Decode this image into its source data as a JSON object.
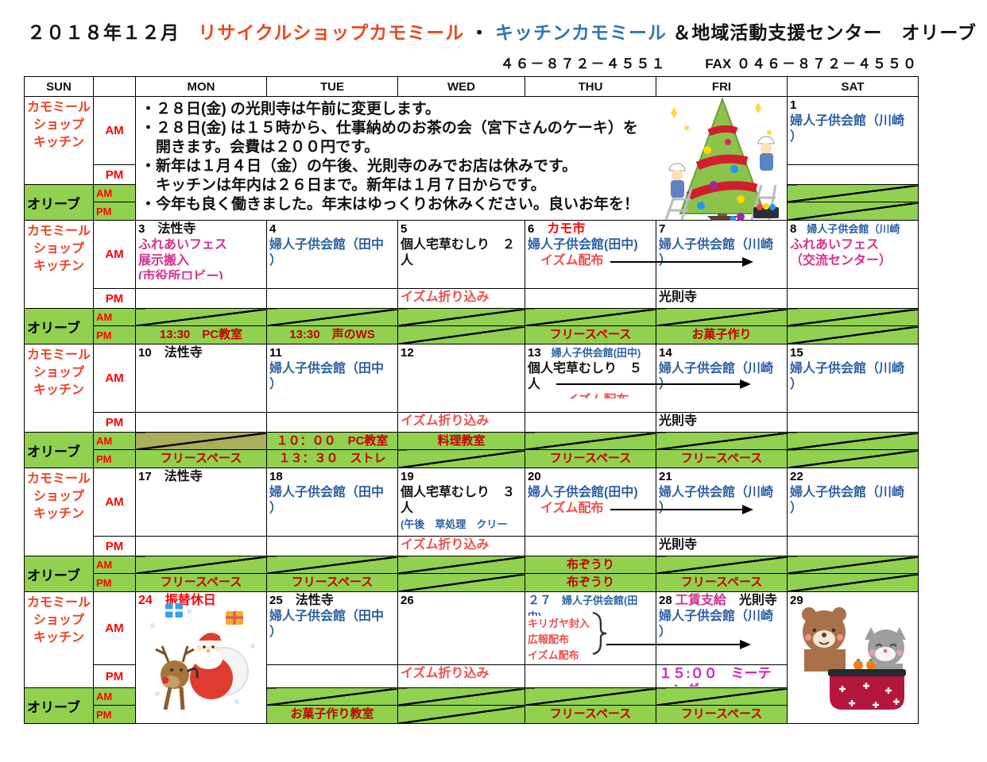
{
  "title": {
    "date": "２０１８年１２月",
    "shop": "リサイクルショップカモミール",
    "sep": "・",
    "kitchen": "キッチンカモミール",
    "suffix": "＆地域活動支援センター　オリーブ"
  },
  "contact": {
    "tel": "４６－８７２－４５５１",
    "fax_label": "FAX",
    "fax": "０４６－８７２－４５５０"
  },
  "header": {
    "sun": "SUN",
    "spacer": "",
    "mon": "MON",
    "tue": "TUE",
    "wed": "WED",
    "thu": "THU",
    "fri": "FRI",
    "sat": "SAT"
  },
  "labels": {
    "chamomile": "カモミール ショップ キッチン",
    "olive": "オリーブ",
    "am": "AM",
    "pm": "PM"
  },
  "notice": {
    "lines": [
      "・２８日(金) の光則寺は午前に変更します。",
      "・２８日(金) は１５時から、仕事納めのお茶の会（宮下さんのケーキ）を",
      "　開きます。会費は２００円です。",
      "・新年は１月４日（金）の午後、光則寺のみでお店は休みです。",
      "　キッチンは年内は２６日まで。新年は１月７日からです。",
      "・今年も良く働きました。年末はゆっくりお休みください。良いお年を！"
    ]
  },
  "colors": {
    "green": "#92d050",
    "label_red": "#ee4023",
    "event_blue": "#2b5fa5",
    "event_magenta": "#d6308f",
    "event_salmon": "#ef4d4d",
    "green_cell_text": "#c00000",
    "title_orange": "#e8491d",
    "title_blue": "#2e74b5"
  },
  "weeks": [
    {
      "type": "notice",
      "sat": {
        "am": [
          [
            "1|d"
          ],
          [
            "婦人子供会館（川崎|b"
          ],
          [
            "）|b"
          ]
        ],
        "pm": [],
        "olive_am": "closed",
        "olive_pm": "closed"
      }
    },
    {
      "am": {
        "mon": [
          [
            "3|d",
            "　法性寺|k"
          ],
          [
            "ふれあいフェス|m"
          ],
          [
            "展示搬入|m"
          ],
          {
            "clip": 13,
            "segs": [
              "(市役所ロビー)|m"
            ]
          }
        ],
        "tue": [
          [
            "4|d"
          ],
          [
            "婦人子供会館（田中|b"
          ],
          [
            "）|b"
          ]
        ],
        "wed": [
          [
            "5|d"
          ],
          [
            "個人宅草むしり　２|k"
          ],
          [
            "人|k"
          ]
        ],
        "thu": [
          [
            "6|d",
            "　カモ市|dr"
          ],
          [
            "婦人子供会館(田中)|b"
          ],
          [
            "　イズム配布|s"
          ]
        ],
        "fri": [
          [
            "7|d"
          ],
          [
            "婦人子供会館（川崎|b"
          ],
          [
            "）|b"
          ]
        ],
        "sat": [
          [
            "8|d",
            "　婦人子供会館（川崎|bs"
          ],
          [
            "ふれあいフェス|m"
          ],
          [
            "（交流センター）|m"
          ]
        ]
      },
      "pm": {
        "wed": [
          [
            "イズム折り込み|s"
          ]
        ],
        "fri": [
          [
            "光則寺|k"
          ]
        ]
      },
      "olive_am": {
        "mon": "closed",
        "tue": "closed",
        "wed": "closed",
        "thu": "closed",
        "fri": "closed",
        "sat": "closed"
      },
      "olive_pm": {
        "mon": "13:30　PC教室",
        "tue": "13:30　声のWS",
        "wed": "closed",
        "thu": "フリースペース",
        "fri": "お菓子作り",
        "sat": "closed"
      }
    },
    {
      "am": {
        "mon": [
          [
            "10|d",
            "　法性寺|k"
          ]
        ],
        "tue": [
          [
            "11|d"
          ],
          [
            "婦人子供会館（田中|b"
          ],
          [
            "）|b"
          ]
        ],
        "wed": [
          [
            "12|d"
          ]
        ],
        "thu": [
          [
            "13|d",
            "　婦人子供会館(田中)|bs"
          ],
          [
            "個人宅草むしり　５|k"
          ],
          [
            "人|k"
          ],
          {
            "clip": 7,
            "segs": [
              "　　　イズム配布|s"
            ]
          }
        ],
        "fri": [
          [
            "14|d"
          ],
          [
            "婦人子供会館（川崎|b"
          ],
          [
            "）|b"
          ]
        ],
        "sat": [
          [
            "15|d"
          ],
          [
            "婦人子供会館（川崎|b"
          ],
          [
            "）|b"
          ]
        ]
      },
      "pm": {
        "wed": [
          [
            "イズム折り込み|s"
          ]
        ],
        "fri": [
          [
            "光則寺|k"
          ]
        ]
      },
      "olive_am": {
        "mon": "closed-dark",
        "tue": "１０：００　PC教室",
        "wed": "料理教室",
        "thu": "closed",
        "fri": "closed",
        "sat": "closed"
      },
      "olive_pm": {
        "mon": "フリースペース",
        "tue": "１３：３０　ストレ",
        "wed": "closed",
        "thu": "フリースペース",
        "fri": "フリースペース",
        "sat": "closed"
      }
    },
    {
      "am": {
        "mon": [
          [
            "17|d",
            "　法性寺|k"
          ]
        ],
        "tue": [
          [
            "18|d"
          ],
          [
            "婦人子供会館（田中|b"
          ],
          [
            "）|b"
          ]
        ],
        "wed": [
          [
            "19|d"
          ],
          [
            "個人宅草むしり　３|k"
          ],
          [
            "人|k"
          ],
          [
            "(午後　草処理　クリー|bs"
          ]
        ],
        "thu": [
          [
            "20|d"
          ],
          [
            "婦人子供会館(田中)|b"
          ],
          [
            "　イズム配布|s"
          ]
        ],
        "fri": [
          [
            "21|d"
          ],
          [
            "婦人子供会館（川崎|b"
          ],
          [
            "）|b"
          ]
        ],
        "sat": [
          [
            "22|d"
          ],
          [
            "婦人子供会館（川崎|b"
          ],
          [
            "）|b"
          ]
        ]
      },
      "pm": {
        "wed": [
          [
            "イズム折り込み|s"
          ]
        ],
        "fri": [
          [
            "光則寺|k"
          ]
        ]
      },
      "olive_am": {
        "mon": "closed",
        "tue": "closed",
        "wed": "closed",
        "thu": "布ぞうり",
        "fri": "closed",
        "sat": "closed"
      },
      "olive_pm": {
        "mon": "フリースペース",
        "tue": "フリースペース",
        "wed": "closed",
        "thu": "布ぞうり",
        "fri": "フリースペース",
        "sat": "closed"
      }
    },
    {
      "merged": [
        "mon",
        "sat"
      ],
      "am": {
        "mon": {
          "rowspan": 4,
          "lines": [
            [
              "24　振替休日|dr"
            ]
          ]
        },
        "tue": [
          [
            "25|d",
            "　法性寺|k"
          ],
          [
            "婦人子供会館（田中|b"
          ],
          [
            "）|b"
          ]
        ],
        "wed": [
          [
            "26|d"
          ]
        ],
        "thu": [
          [
            "２７|b15",
            "　婦人子供会館(田|bs"
          ],
          {
            "clip": 9,
            "segs": [
              "中)|bs"
            ]
          },
          [
            "キリガヤ封入|ss"
          ],
          [
            "広報配布|ss"
          ],
          [
            "イズム配布|ss"
          ]
        ],
        "fri": [
          [
            "28 |d",
            "工賃支給|m",
            "　光則寺|k"
          ],
          [
            "婦人子供会館（川崎|b"
          ],
          [
            "）|b"
          ]
        ],
        "sat": {
          "rowspan": 4,
          "lines": [
            [
              "29|d"
            ]
          ]
        }
      },
      "pm": {
        "wed": [
          [
            "イズム折り込み|s"
          ]
        ],
        "fri": [
          [
            "１５:００　ミーテ|p"
          ],
          {
            "clip": 5,
            "segs": [
              "ィング|p"
            ]
          }
        ]
      },
      "olive_am": {
        "tue": "closed",
        "wed": "closed",
        "thu": "closed",
        "fri": "closed"
      },
      "olive_pm": {
        "tue": "お菓子作り教室",
        "wed": "closed",
        "thu": "フリースペース",
        "fri": "フリースペース"
      }
    }
  ]
}
